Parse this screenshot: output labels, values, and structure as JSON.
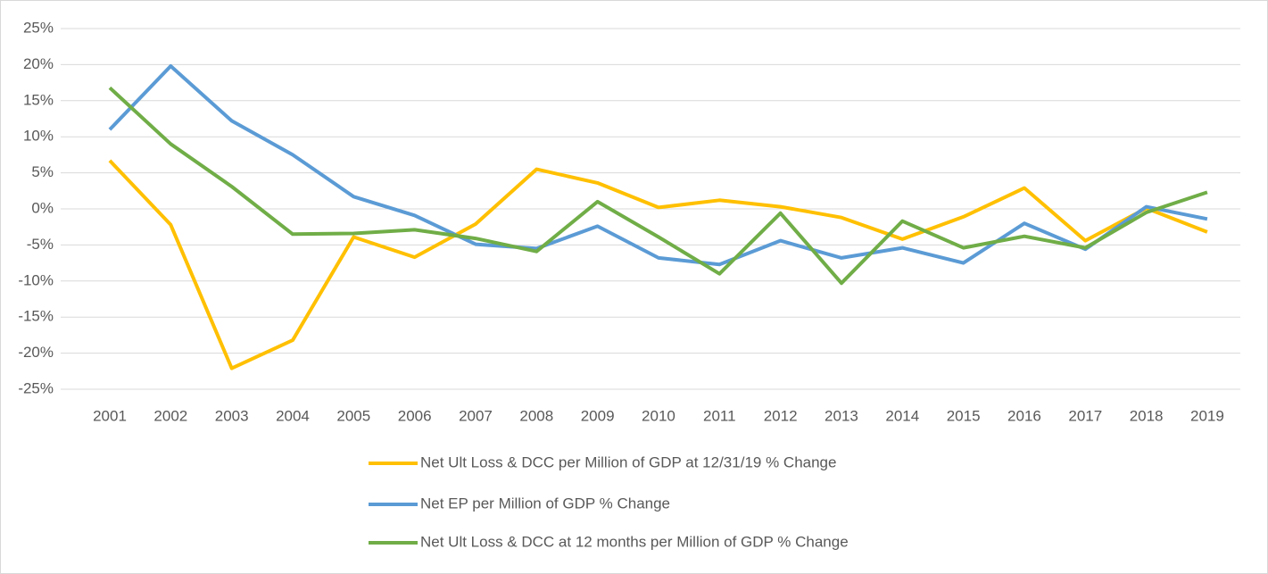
{
  "chart_data": {
    "type": "line",
    "categories": [
      "2001",
      "2002",
      "2003",
      "2004",
      "2005",
      "2006",
      "2007",
      "2008",
      "2009",
      "2010",
      "2011",
      "2012",
      "2013",
      "2014",
      "2015",
      "2016",
      "2017",
      "2018",
      "2019"
    ],
    "series": [
      {
        "name": "Net Ult Loss & DCC per Million of GDP at 12/31/19 % Change",
        "color": "#ffc000",
        "values": [
          6.7,
          -2.2,
          -22.1,
          -18.2,
          -3.9,
          -6.7,
          -2.1,
          5.5,
          3.6,
          0.2,
          1.2,
          0.3,
          -1.2,
          -4.2,
          -1.1,
          2.9,
          -4.4,
          0.1,
          -3.2
        ]
      },
      {
        "name": "Net EP per Million of GDP  % Change",
        "color": "#5b9bd5",
        "values": [
          11.0,
          19.8,
          12.2,
          7.5,
          1.7,
          -0.9,
          -4.9,
          -5.5,
          -2.4,
          -6.8,
          -7.7,
          -4.4,
          -6.8,
          -5.4,
          -7.5,
          -2.0,
          -5.6,
          0.3,
          -1.4
        ]
      },
      {
        "name": "Net Ult Loss & DCC at 12 months per Million of GDP % Change",
        "color": "#70ad47",
        "values": [
          16.8,
          9.0,
          3.1,
          -3.5,
          -3.4,
          -2.9,
          -4.1,
          -5.9,
          1.0,
          -3.9,
          -9.0,
          -0.6,
          -10.3,
          -1.7,
          -5.4,
          -3.8,
          -5.4,
          -0.5,
          2.3
        ]
      }
    ],
    "ylim": [
      -25,
      25
    ],
    "yticks": [
      {
        "value": 25,
        "label": "25%"
      },
      {
        "value": 20,
        "label": "20%"
      },
      {
        "value": 15,
        "label": "15%"
      },
      {
        "value": 10,
        "label": "10%"
      },
      {
        "value": 5,
        "label": "5%"
      },
      {
        "value": 0,
        "label": "0%"
      },
      {
        "value": -5,
        "label": "-5%"
      },
      {
        "value": -10,
        "label": "-10%"
      },
      {
        "value": -15,
        "label": "-15%"
      },
      {
        "value": -20,
        "label": "-20%"
      },
      {
        "value": -25,
        "label": "-25%"
      }
    ],
    "grid": true,
    "legend": "bottom"
  }
}
